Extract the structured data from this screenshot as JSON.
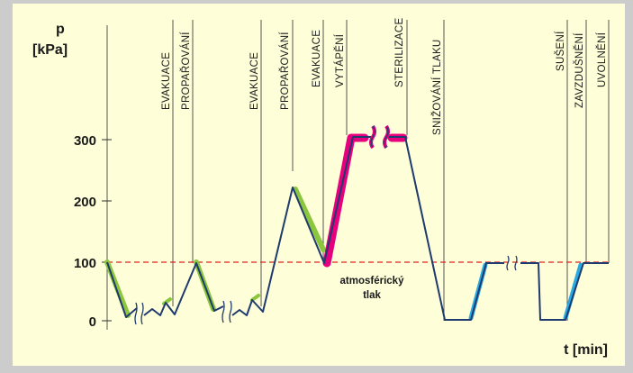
{
  "axis": {
    "y_title_line1": "p",
    "y_title_line2": "[kPa]",
    "x_title": "t [min]",
    "y_ticks": [
      "0",
      "100",
      "200",
      "300"
    ]
  },
  "phases": [
    "EVAKUACE",
    "PROPAŘOVÁNÍ",
    "EVAKUACE",
    "PROPAŘOVÁNÍ",
    "EVAKUACE",
    "VYTÁPĚNÍ",
    "STERILIZACE",
    "SNIŽOVÁNÍ TLAKU",
    "SUŠENÍ",
    "ZAVZDUŠNĚNÍ",
    "UVOLNĚNÍ"
  ],
  "annotation": {
    "line1": "atmosférický",
    "line2": "tlak"
  },
  "colors": {
    "curve": "#1f3a6e",
    "evacuation": "#8cc63f",
    "heating": "#e6007e",
    "drying": "#29a9e1",
    "atmospheric": "#e0231f"
  },
  "chart_data": {
    "type": "line",
    "x_unit": "t [min]",
    "y_unit": "p [kPa]",
    "ylim": [
      0,
      300
    ],
    "atmospheric_pressure": 100,
    "phases": [
      "EVAKUACE",
      "PROPAŘOVÁNÍ",
      "EVAKUACE",
      "PROPAŘOVÁNÍ",
      "EVAKUACE",
      "VYTÁPĚNÍ",
      "STERILIZACE",
      "SNIŽOVÁNÍ TLAKU",
      "SUŠENÍ",
      "ZAVZDUŠNĚNÍ",
      "UVOLNĚNÍ"
    ]
  }
}
